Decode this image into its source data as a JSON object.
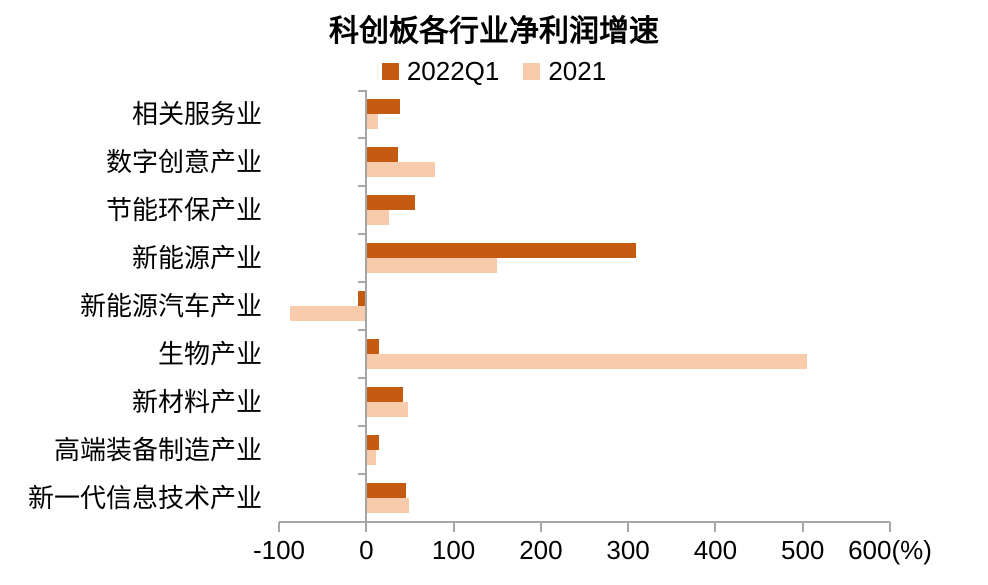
{
  "title": "科创板各行业净利润增速",
  "legend": {
    "items": [
      {
        "label": "2022Q1",
        "color": "#C55A11"
      },
      {
        "label": "2021",
        "color": "#F8CBAD"
      }
    ]
  },
  "chart_data": {
    "type": "bar",
    "orientation": "horizontal",
    "title": "科创板各行业净利润增速",
    "categories": [
      "相关服务业",
      "数字创意产业",
      "节能环保产业",
      "新能源产业",
      "新能源汽车产业",
      "生物产业",
      "新材料产业",
      "高端装备制造产业",
      "新一代信息技术产业"
    ],
    "series": [
      {
        "name": "2022Q1",
        "color": "#C55A11",
        "values": [
          39,
          36,
          56,
          309,
          -10,
          15,
          42,
          15,
          46
        ]
      },
      {
        "name": "2021",
        "color": "#F8CBAD",
        "values": [
          14,
          79,
          26,
          150,
          -87,
          505,
          48,
          11,
          49
        ]
      }
    ],
    "xlabel": "",
    "ylabel": "",
    "unit_label": "(%)",
    "xlim": [
      -100,
      600
    ],
    "x_ticks": [
      -100,
      0,
      100,
      200,
      300,
      400,
      500,
      600
    ],
    "x_tick_labels": [
      "-100",
      "0",
      "100",
      "200",
      "300",
      "400",
      "500",
      "600(%)"
    ],
    "grid": false,
    "legend_position": "top",
    "axis_color": "#A6A6A6",
    "text_color": "#000000"
  }
}
